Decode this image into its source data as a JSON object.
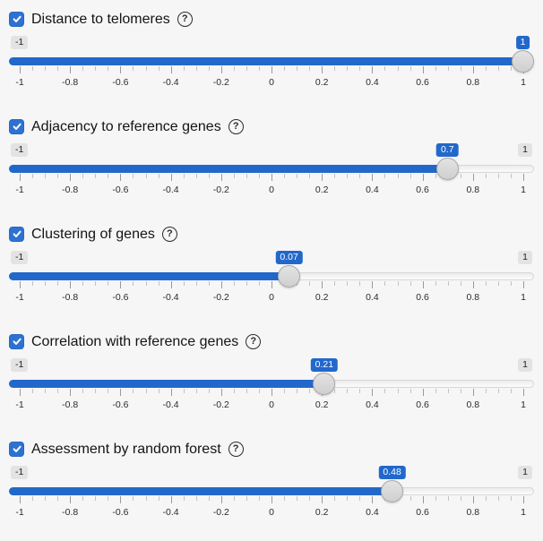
{
  "colors": {
    "accent": "#2268cb",
    "checkbox": "#2d72d2",
    "badge_bg": "#e3e3e3",
    "page_bg": "#f6f6f7"
  },
  "help_glyph": "?",
  "axis": {
    "min": -1,
    "max": 1,
    "tick_labels": [
      "-1",
      "-0.8",
      "-0.6",
      "-0.4",
      "-0.2",
      "0",
      "0.2",
      "0.4",
      "0.6",
      "0.8",
      "1"
    ],
    "minor_ticks_per_interval": 3
  },
  "sliders": [
    {
      "label": "Distance to telomeres",
      "checked": true,
      "min_label": "-1",
      "max_label": "1",
      "value": 1,
      "value_label": "1",
      "max_label_hidden": true
    },
    {
      "label": "Adjacency to reference genes",
      "checked": true,
      "min_label": "-1",
      "max_label": "1",
      "value": 0.7,
      "value_label": "0.7",
      "max_label_hidden": false
    },
    {
      "label": "Clustering of genes",
      "checked": true,
      "min_label": "-1",
      "max_label": "1",
      "value": 0.07,
      "value_label": "0.07",
      "max_label_hidden": false
    },
    {
      "label": "Correlation with reference genes",
      "checked": true,
      "min_label": "-1",
      "max_label": "1",
      "value": 0.21,
      "value_label": "0.21",
      "max_label_hidden": false
    },
    {
      "label": "Assessment by random forest",
      "checked": true,
      "min_label": "-1",
      "max_label": "1",
      "value": 0.48,
      "value_label": "0.48",
      "max_label_hidden": false
    }
  ]
}
